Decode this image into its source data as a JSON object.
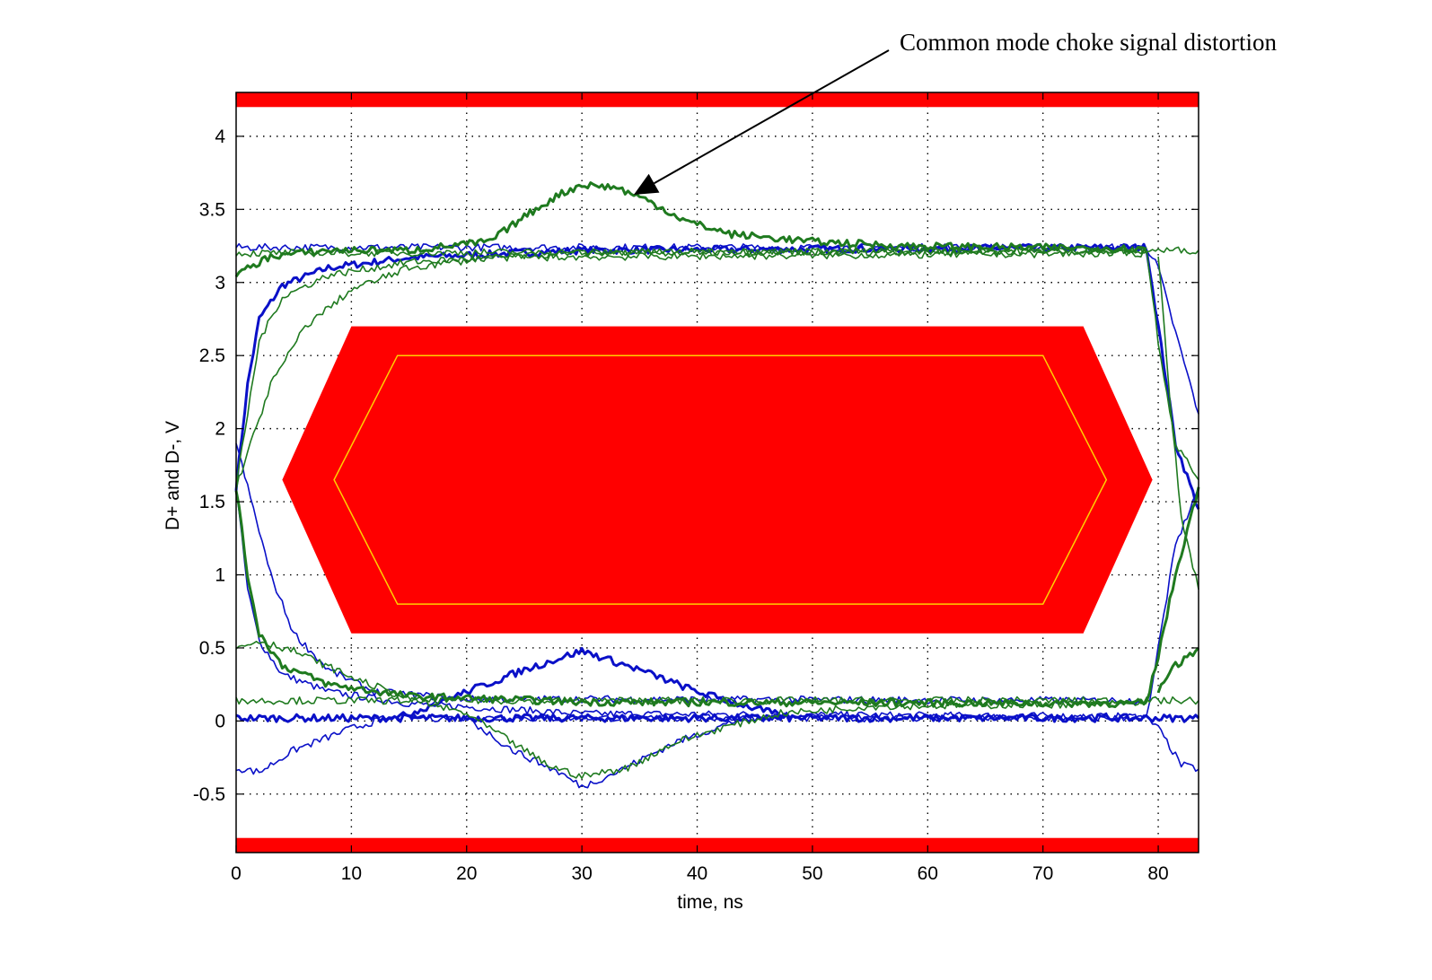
{
  "chart_data": {
    "type": "line",
    "title": "",
    "xlabel": "time, ns",
    "ylabel": "D+ and D-, V",
    "xlim": [
      0,
      83.5
    ],
    "ylim": [
      -0.9,
      4.3
    ],
    "x_ticks": [
      0,
      10,
      20,
      30,
      40,
      50,
      60,
      70,
      80
    ],
    "y_ticks": [
      -0.5,
      0,
      0.5,
      1,
      1.5,
      2,
      2.5,
      3,
      3.5,
      4
    ],
    "x_tick_labels": [
      "0",
      "10",
      "20",
      "30",
      "40",
      "50",
      "60",
      "70",
      "80"
    ],
    "y_tick_labels": [
      "-0.5",
      "0",
      "0.5",
      "1",
      "1.5",
      "2",
      "2.5",
      "3",
      "3.5",
      "4"
    ],
    "grid": true,
    "colors": {
      "blue_trace": "#0a10c8",
      "green_trace": "#1f7a1f",
      "mask": "#ff0000",
      "inner_outline": "#ffd000"
    },
    "mask_regions": {
      "top_bar": {
        "y": [
          4.2,
          4.3
        ]
      },
      "bottom_bar": {
        "y": [
          -0.9,
          -0.8
        ]
      },
      "outer_hexagon": [
        [
          4,
          1.65
        ],
        [
          10,
          2.7
        ],
        [
          73.5,
          2.7
        ],
        [
          79.5,
          1.65
        ],
        [
          73.5,
          0.6
        ],
        [
          10,
          0.6
        ]
      ],
      "inner_hexagon": [
        [
          8.5,
          1.65
        ],
        [
          14,
          2.5
        ],
        [
          70,
          2.5
        ],
        [
          75.5,
          1.65
        ],
        [
          70,
          0.8
        ],
        [
          14,
          0.8
        ]
      ]
    },
    "series": [
      {
        "color": "blue",
        "points": [
          [
            0,
            1.6
          ],
          [
            1,
            2.3
          ],
          [
            2,
            2.75
          ],
          [
            4,
            2.98
          ],
          [
            8,
            3.1
          ],
          [
            15,
            3.17
          ],
          [
            30,
            3.22
          ],
          [
            79,
            3.24
          ],
          [
            80,
            2.7
          ],
          [
            81.5,
            1.9
          ],
          [
            83.5,
            1.45
          ]
        ]
      },
      {
        "color": "blue",
        "points": [
          [
            0,
            1.6
          ],
          [
            1,
            0.9
          ],
          [
            2,
            0.55
          ],
          [
            4,
            0.32
          ],
          [
            8,
            0.2
          ],
          [
            15,
            0.12
          ],
          [
            30,
            0.05
          ],
          [
            79,
            0.03
          ],
          [
            80,
            0.5
          ],
          [
            81.5,
            1.2
          ],
          [
            83.5,
            1.6
          ]
        ]
      },
      {
        "color": "blue",
        "points": [
          [
            0,
            3.24
          ],
          [
            79,
            3.24
          ],
          [
            80,
            3.1
          ],
          [
            81,
            2.8
          ],
          [
            83.5,
            2.1
          ]
        ]
      },
      {
        "color": "blue",
        "points": [
          [
            0,
            0.02
          ],
          [
            79,
            0.02
          ],
          [
            83.5,
            0.02
          ]
        ]
      },
      {
        "color": "blue",
        "points": [
          [
            0,
            -0.32
          ],
          [
            2,
            -0.35
          ],
          [
            5,
            -0.2
          ],
          [
            10,
            -0.05
          ],
          [
            13,
            0.02
          ],
          [
            79,
            0.02
          ],
          [
            80,
            -0.05
          ],
          [
            82,
            -0.3
          ],
          [
            83.5,
            -0.33
          ]
        ]
      },
      {
        "color": "blue",
        "points": [
          [
            0,
            1.9
          ],
          [
            3,
            1.0
          ],
          [
            5,
            0.6
          ],
          [
            8,
            0.35
          ],
          [
            12,
            0.2
          ],
          [
            20,
            0.15
          ],
          [
            30,
            0.15
          ],
          [
            79,
            0.14
          ]
        ]
      },
      {
        "color": "blue",
        "points": [
          [
            14,
            0.02
          ],
          [
            20,
            0.2
          ],
          [
            25,
            0.35
          ],
          [
            30,
            0.48
          ],
          [
            35,
            0.35
          ],
          [
            40,
            0.2
          ],
          [
            48,
            0.02
          ]
        ]
      },
      {
        "color": "blue",
        "points": [
          [
            20,
            0.02
          ],
          [
            24,
            -0.2
          ],
          [
            28,
            -0.35
          ],
          [
            30,
            -0.45
          ],
          [
            33,
            -0.35
          ],
          [
            38,
            -0.15
          ],
          [
            44,
            0.02
          ]
        ]
      },
      {
        "color": "green",
        "points": [
          [
            0,
            1.6
          ],
          [
            1,
            2.1
          ],
          [
            2,
            2.6
          ],
          [
            4,
            2.9
          ],
          [
            8,
            3.05
          ],
          [
            15,
            3.14
          ],
          [
            30,
            3.2
          ],
          [
            79,
            3.22
          ],
          [
            80,
            2.6
          ],
          [
            81.5,
            1.9
          ],
          [
            83.5,
            1.65
          ]
        ]
      },
      {
        "color": "green",
        "points": [
          [
            0,
            1.6
          ],
          [
            1,
            1.0
          ],
          [
            2,
            0.6
          ],
          [
            4,
            0.38
          ],
          [
            8,
            0.25
          ],
          [
            15,
            0.17
          ],
          [
            30,
            0.13
          ],
          [
            79,
            0.12
          ],
          [
            80,
            0.45
          ],
          [
            81.5,
            1.0
          ],
          [
            83.5,
            1.6
          ]
        ]
      },
      {
        "color": "green",
        "points": [
          [
            0,
            3.2
          ],
          [
            79,
            3.22
          ],
          [
            83.5,
            3.22
          ]
        ]
      },
      {
        "color": "green",
        "points": [
          [
            0,
            0.14
          ],
          [
            79,
            0.14
          ],
          [
            83.5,
            0.14
          ]
        ]
      },
      {
        "color": "green",
        "points": [
          [
            0,
            3.05
          ],
          [
            3,
            3.18
          ],
          [
            8,
            3.22
          ],
          [
            15,
            3.22
          ],
          [
            22,
            3.28
          ],
          [
            25,
            3.45
          ],
          [
            28,
            3.6
          ],
          [
            30,
            3.67
          ],
          [
            33,
            3.65
          ],
          [
            36,
            3.55
          ],
          [
            39,
            3.42
          ],
          [
            43,
            3.33
          ],
          [
            50,
            3.28
          ],
          [
            58,
            3.25
          ],
          [
            79,
            3.23
          ]
        ]
      },
      {
        "color": "green",
        "points": [
          [
            0,
            0.5
          ],
          [
            2,
            0.55
          ],
          [
            5,
            0.48
          ],
          [
            10,
            0.3
          ],
          [
            15,
            0.15
          ],
          [
            20,
            0.05
          ],
          [
            24,
            -0.15
          ],
          [
            27,
            -0.3
          ],
          [
            30,
            -0.38
          ],
          [
            34,
            -0.32
          ],
          [
            38,
            -0.15
          ],
          [
            42,
            -0.05
          ],
          [
            47,
            0.05
          ],
          [
            55,
            0.1
          ],
          [
            79,
            0.12
          ]
        ]
      },
      {
        "color": "green",
        "points": [
          [
            0,
            1.6
          ],
          [
            3,
            2.3
          ],
          [
            6,
            2.7
          ],
          [
            10,
            2.95
          ],
          [
            15,
            3.1
          ],
          [
            22,
            3.17
          ],
          [
            79,
            3.2
          ]
        ]
      },
      {
        "color": "green",
        "points": [
          [
            80,
            0.2
          ],
          [
            81,
            0.35
          ],
          [
            83.5,
            0.5
          ]
        ]
      },
      {
        "color": "green",
        "points": [
          [
            80,
            3.2
          ],
          [
            81,
            2.2
          ],
          [
            82,
            1.4
          ],
          [
            83.5,
            0.9
          ]
        ]
      }
    ],
    "annotations": [
      {
        "text": "Common mode choke signal distortion",
        "arrow_to": [
          34.5,
          3.6
        ]
      }
    ]
  }
}
